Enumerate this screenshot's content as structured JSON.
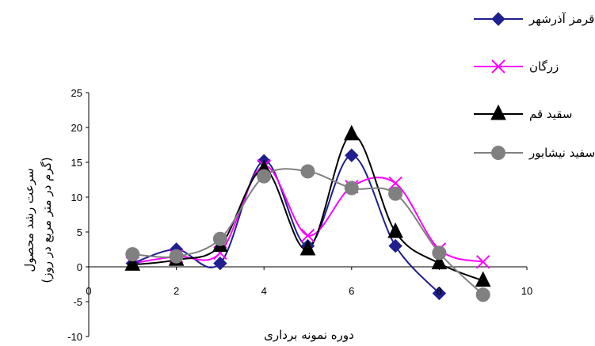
{
  "chart_data": {
    "type": "line",
    "xlabel": "دوره نمونه برداری",
    "ylabel": "سرعت رشد محصول",
    "ylabel_line2": "(گرم در متر مربع در روز)",
    "xlim": [
      0,
      10
    ],
    "ylim": [
      -10,
      25
    ],
    "x_ticks": [
      "0",
      "2",
      "4",
      "6",
      "8",
      "10"
    ],
    "y_ticks": [
      "-10",
      "-5",
      "0",
      "5",
      "10",
      "15",
      "20",
      "25"
    ],
    "legend_position": "right",
    "series": [
      {
        "name": "قرمز آذرشهر",
        "color": "#1F1F8F",
        "marker": "diamond",
        "x": [
          1,
          2,
          3,
          4,
          5,
          6,
          7,
          8
        ],
        "y": [
          0.5,
          2.5,
          0.5,
          15.2,
          3.0,
          16.0,
          3.0,
          -3.8
        ]
      },
      {
        "name": "زرگان",
        "color": "#FF00FF",
        "marker": "x",
        "x": [
          1,
          2,
          3,
          4,
          5,
          6,
          7,
          8,
          9
        ],
        "y": [
          0.5,
          1.5,
          2.0,
          14.5,
          4.5,
          11.5,
          12.0,
          2.5,
          0.7
        ]
      },
      {
        "name": "سقید قم",
        "color": "#000000",
        "marker": "triangle",
        "x": [
          1,
          2,
          3,
          4,
          5,
          6,
          7,
          8,
          9
        ],
        "y": [
          0.3,
          1.0,
          3.0,
          14.0,
          2.5,
          19.0,
          5.0,
          0.5,
          -2.0
        ]
      },
      {
        "name": "سفید نیشابور",
        "color": "#808080",
        "marker": "circle",
        "x": [
          1,
          2,
          3,
          4,
          5,
          6,
          7,
          8,
          9
        ],
        "y": [
          1.8,
          1.5,
          4.0,
          13.0,
          13.7,
          11.3,
          10.5,
          2.0,
          -4.0
        ]
      }
    ]
  }
}
